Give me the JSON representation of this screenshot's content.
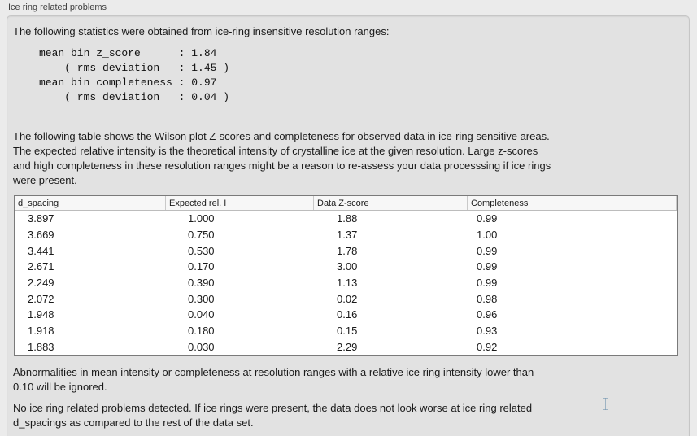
{
  "panel": {
    "title": "Ice ring related problems"
  },
  "intro_text": "The following statistics were obtained from ice-ring insensitive resolution ranges:",
  "stats_block": "mean bin z_score      : 1.84\n    ( rms deviation   : 1.45 )\nmean bin completeness : 0.97\n    ( rms deviation   : 0.04 )",
  "stats": {
    "mean_bin_z_score": "1.84",
    "z_score_rms_deviation": "1.45",
    "mean_bin_completeness": "0.97",
    "completeness_rms_deviation": "0.04"
  },
  "table_description": "The following table shows the Wilson plot Z-scores and completeness for observed data in ice-ring sensitive areas.\nThe expected relative intensity is the theoretical intensity of crystalline ice at the given resolution. Large z-scores\nand high completeness in these resolution ranges might be a reason to re-assess your data processsing if ice rings\nwere present.",
  "table": {
    "columns": [
      "d_spacing",
      "Expected rel. I",
      "Data Z-score",
      "Completeness"
    ],
    "rows": [
      [
        "3.897",
        "1.000",
        "1.88",
        "0.99"
      ],
      [
        "3.669",
        "0.750",
        "1.37",
        "1.00"
      ],
      [
        "3.441",
        "0.530",
        "1.78",
        "0.99"
      ],
      [
        "2.671",
        "0.170",
        "3.00",
        "0.99"
      ],
      [
        "2.249",
        "0.390",
        "1.13",
        "0.99"
      ],
      [
        "2.072",
        "0.300",
        "0.02",
        "0.98"
      ],
      [
        "1.948",
        "0.040",
        "0.16",
        "0.96"
      ],
      [
        "1.918",
        "0.180",
        "0.15",
        "0.93"
      ],
      [
        "1.883",
        "0.030",
        "2.29",
        "0.92"
      ]
    ]
  },
  "abnormalities_note": "Abnormalities in mean intensity or completeness at resolution ranges with a relative ice ring intensity lower than\n0.10 will be ignored.",
  "conclusion_text": "No ice ring related problems detected. If ice rings were present, the data does not look worse at ice ring related\nd_spacings as compared to the rest of the data set.",
  "colors": {
    "outer_background": "#ebebeb",
    "panel_background": "#e2e2e2",
    "panel_border": "#c6c6c6",
    "table_background": "#ffffff",
    "table_border": "#7a7a7a",
    "header_background": "#f7f7f7",
    "text": "#1a1a1a"
  }
}
